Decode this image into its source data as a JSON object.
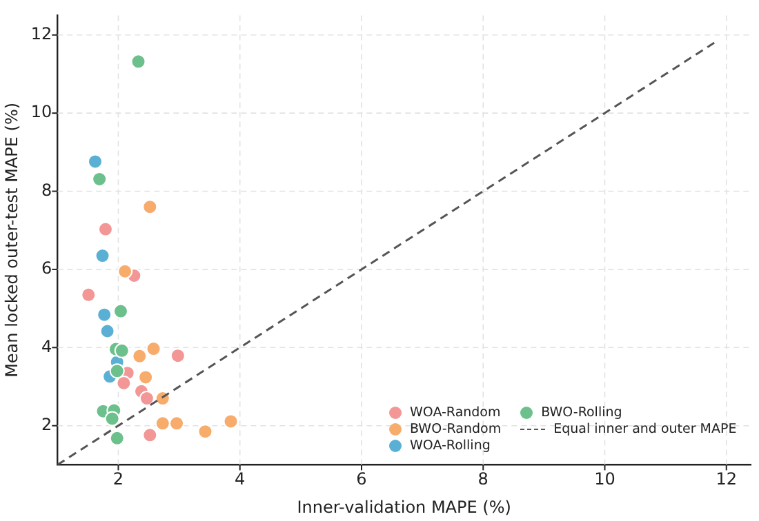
{
  "chart_data": {
    "type": "scatter",
    "xlabel": "Inner-validation MAPE (%)",
    "ylabel": "Mean locked outer-test MAPE (%)",
    "xlim": [
      1,
      12.4
    ],
    "ylim": [
      1,
      12.5
    ],
    "xticks": [
      2,
      4,
      6,
      8,
      10,
      12
    ],
    "yticks": [
      2,
      4,
      6,
      8,
      10,
      12
    ],
    "grid": true,
    "legend": "bottom right",
    "marker": "circle",
    "series": [
      {
        "name": "WOA-Random",
        "color": "#f39696",
        "x": [
          1.79,
          2.26,
          1.51,
          2.98,
          2.15,
          2.09,
          null,
          2.38,
          2.47,
          2.52
        ],
        "values": [
          7.03,
          5.84,
          5.35,
          3.79,
          3.35,
          3.09,
          null,
          2.88,
          2.7,
          1.76
        ]
      },
      {
        "name": "BWO-Random",
        "color": "#f8ac6c",
        "x": [
          2.52,
          2.11,
          2.58,
          2.35,
          2.45,
          2.73,
          2.73,
          2.96,
          3.85,
          3.43
        ],
        "values": [
          7.6,
          5.95,
          3.97,
          3.78,
          3.24,
          2.7,
          2.06,
          2.06,
          2.11,
          1.85
        ]
      },
      {
        "name": "WOA-Rolling",
        "color": "#5ab0d4",
        "x": [
          1.62,
          1.74,
          1.77,
          1.82,
          1.98,
          null,
          1.86,
          null
        ],
        "values": [
          8.76,
          6.35,
          4.84,
          4.42,
          3.63,
          null,
          3.26,
          null
        ]
      },
      {
        "name": "BWO-Rolling",
        "color": "#6cc08b",
        "x": [
          2.33,
          1.69,
          2.04,
          1.96,
          2.06,
          1.98,
          1.75,
          1.93,
          1.9,
          1.98
        ],
        "values": [
          11.32,
          8.31,
          4.93,
          3.96,
          3.92,
          3.4,
          2.37,
          2.39,
          2.18,
          1.68
        ]
      },
      {
        "name": "Equal inner and outer MAPE",
        "type": "line",
        "color": "#555555",
        "line_style": "dashed",
        "marker": "none",
        "x": [
          1,
          11.8
        ],
        "values": [
          1,
          11.8
        ]
      }
    ]
  }
}
